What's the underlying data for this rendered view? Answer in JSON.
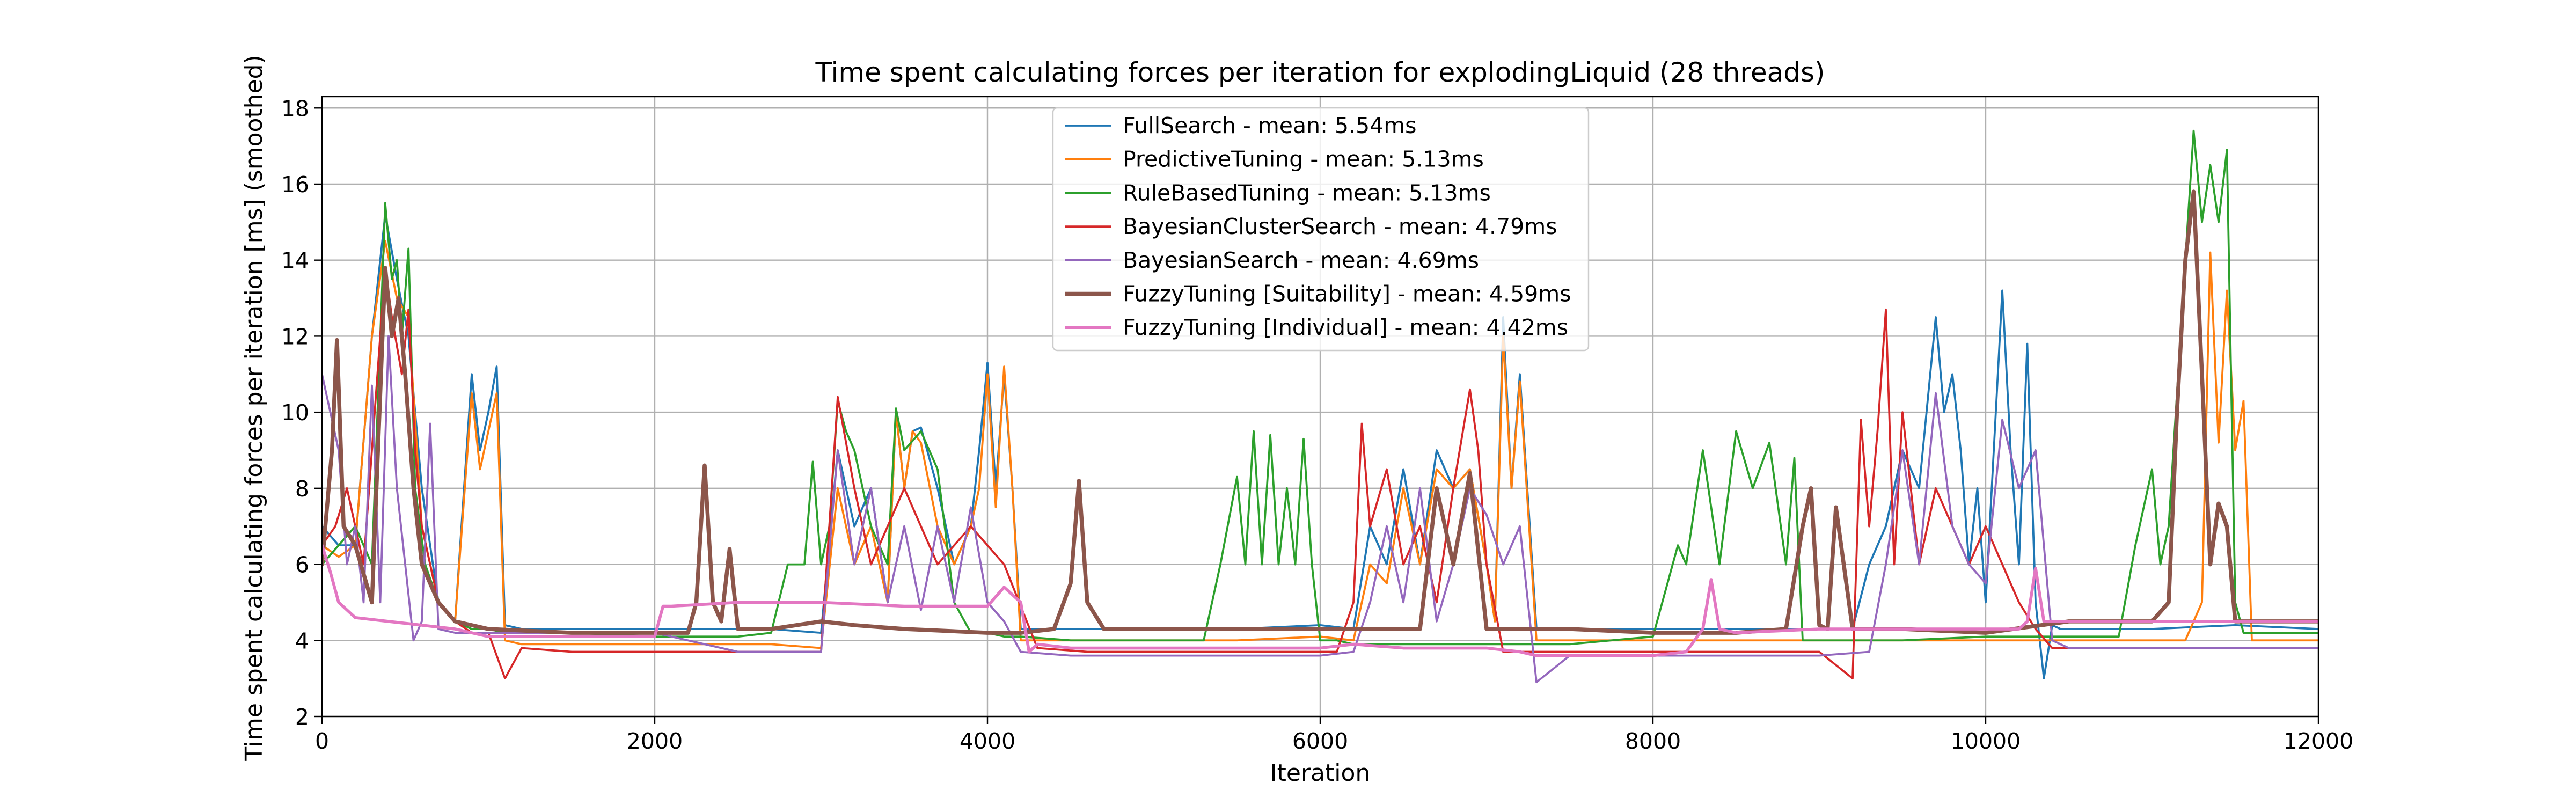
{
  "chart_data": {
    "type": "line",
    "title": "Time spent calculating forces per iteration for explodingLiquid (28 threads)",
    "xlabel": "Iteration",
    "ylabel": "Time spent calculating forces per iteration [ms] (smoothed)",
    "xlim": [
      0,
      12000
    ],
    "ylim": [
      2,
      18.3
    ],
    "xticks": [
      0,
      2000,
      4000,
      6000,
      8000,
      10000,
      12000
    ],
    "yticks": [
      2,
      4,
      6,
      8,
      10,
      12,
      14,
      16,
      18
    ],
    "grid": true,
    "legend_position": "upper-center",
    "series": [
      {
        "name": "FullSearch - mean: 5.54ms",
        "color": "#1f77b4",
        "line_width": 1,
        "x": [
          0,
          100,
          200,
          300,
          380,
          450,
          520,
          600,
          700,
          800,
          900,
          950,
          1000,
          1050,
          1100,
          1200,
          1500,
          1800,
          2100,
          2400,
          2700,
          3000,
          3100,
          3200,
          3300,
          3400,
          3450,
          3500,
          3550,
          3600,
          3700,
          3800,
          3900,
          3950,
          4000,
          4050,
          4100,
          4150,
          4200,
          4500,
          5000,
          5500,
          6000,
          6200,
          6300,
          6400,
          6500,
          6600,
          6700,
          6800,
          6900,
          7000,
          7050,
          7100,
          7150,
          7200,
          7300,
          7500,
          8000,
          8500,
          9000,
          9200,
          9300,
          9400,
          9500,
          9600,
          9700,
          9750,
          9800,
          9850,
          9900,
          9950,
          10000,
          10100,
          10150,
          10200,
          10250,
          10300,
          10350,
          10400,
          10450,
          10500,
          11000,
          11500,
          12000
        ],
        "y": [
          7,
          6.5,
          6.5,
          12,
          15.2,
          13.5,
          12,
          8,
          5,
          4.5,
          11,
          9,
          10,
          11.2,
          4.4,
          4.3,
          4.3,
          4.3,
          4.3,
          4.3,
          4.3,
          4.2,
          9,
          7,
          8,
          5,
          10,
          8,
          9.5,
          9.6,
          8,
          6,
          7,
          9,
          11.3,
          8,
          11,
          8,
          4.3,
          4.3,
          4.3,
          4.3,
          4.4,
          4.3,
          7,
          6,
          8.5,
          6,
          9,
          8,
          8.5,
          6,
          4.5,
          12.5,
          8,
          11,
          4.3,
          4.3,
          4.3,
          4.3,
          4.3,
          4.3,
          6,
          7,
          9,
          8,
          12.5,
          10,
          11,
          9,
          6,
          8,
          5,
          13.2,
          9,
          6,
          11.8,
          5,
          3,
          4.4,
          4.3,
          4.3,
          4.3,
          4.4,
          4.3
        ]
      },
      {
        "name": "PredictiveTuning - mean: 5.13ms",
        "color": "#ff7f0e",
        "line_width": 1,
        "x": [
          0,
          100,
          200,
          300,
          380,
          450,
          520,
          600,
          700,
          800,
          900,
          950,
          1000,
          1050,
          1100,
          1200,
          1500,
          1800,
          2100,
          2400,
          2700,
          3000,
          3100,
          3200,
          3300,
          3400,
          3450,
          3500,
          3550,
          3600,
          3700,
          3800,
          3900,
          3950,
          4000,
          4050,
          4100,
          4150,
          4200,
          4500,
          5000,
          5500,
          6000,
          6200,
          6300,
          6400,
          6500,
          6600,
          6700,
          6800,
          6900,
          7000,
          7050,
          7100,
          7150,
          7200,
          7300,
          7500,
          8000,
          8500,
          9000,
          9500,
          10000,
          10500,
          11000,
          11200,
          11300,
          11350,
          11400,
          11450,
          11500,
          11550,
          11600,
          11700,
          12000
        ],
        "y": [
          6.5,
          6.2,
          6.5,
          12,
          14.5,
          13,
          12.5,
          7,
          5,
          4.5,
          10.5,
          8.5,
          9.5,
          10.5,
          4,
          3.9,
          3.9,
          3.9,
          3.9,
          3.9,
          3.9,
          3.8,
          8,
          6,
          7,
          5,
          10,
          8,
          9.5,
          9.2,
          7,
          6,
          7,
          8,
          11,
          7.5,
          11.2,
          8,
          4,
          4,
          4,
          4,
          4.1,
          4,
          6,
          5.5,
          8,
          6,
          8.5,
          8,
          8.5,
          6,
          4.5,
          12,
          8,
          10.8,
          4,
          4,
          4,
          4,
          4,
          4,
          4,
          4,
          4,
          4,
          5,
          14.2,
          9.2,
          13.2,
          9,
          10.3,
          4,
          4,
          4
        ]
      },
      {
        "name": "RuleBasedTuning - mean: 5.13ms",
        "color": "#2ca02c",
        "line_width": 1,
        "x": [
          0,
          100,
          200,
          300,
          380,
          420,
          450,
          480,
          520,
          560,
          620,
          700,
          800,
          900,
          1000,
          1100,
          1500,
          2000,
          2500,
          2700,
          2800,
          2900,
          2950,
          3000,
          3050,
          3100,
          3150,
          3200,
          3300,
          3400,
          3450,
          3500,
          3600,
          3700,
          3800,
          3900,
          4000,
          4100,
          4200,
          4500,
          5000,
          5300,
          5400,
          5500,
          5550,
          5600,
          5650,
          5700,
          5750,
          5800,
          5850,
          5900,
          5950,
          6000,
          6100,
          6200,
          6500,
          7000,
          7500,
          8000,
          8150,
          8200,
          8300,
          8400,
          8500,
          8600,
          8700,
          8800,
          8850,
          8900,
          9000,
          9500,
          10000,
          10500,
          10800,
          10900,
          11000,
          11050,
          11100,
          11200,
          11250,
          11300,
          11350,
          11400,
          11450,
          11500,
          11550,
          11600,
          11700,
          12000
        ],
        "y": [
          6,
          6.5,
          7,
          6,
          15.5,
          13.5,
          14,
          12,
          14.3,
          8,
          6,
          5,
          4.5,
          4.3,
          4.3,
          4.2,
          4.2,
          4.1,
          4.1,
          4.2,
          6,
          6,
          8.7,
          6,
          7,
          10.3,
          9.5,
          9,
          7,
          6,
          10.1,
          9,
          9.5,
          8.5,
          5,
          4.2,
          4.2,
          4.1,
          4.1,
          4,
          4,
          4,
          6,
          8.3,
          6,
          9.5,
          6,
          9.4,
          6,
          8,
          6,
          9.3,
          6,
          4,
          4,
          3.9,
          3.9,
          3.9,
          3.9,
          4.1,
          6.5,
          6,
          9,
          6,
          9.5,
          8,
          9.2,
          6,
          8.8,
          4,
          4,
          4,
          4.1,
          4.1,
          4.1,
          6.5,
          8.5,
          6,
          7,
          14,
          17.4,
          15,
          16.5,
          15,
          16.9,
          5,
          4.2,
          4.2,
          4.2,
          4.2
        ]
      },
      {
        "name": "BayesianClusterSearch - mean: 4.79ms",
        "color": "#d62728",
        "line_width": 1,
        "x": [
          0,
          80,
          150,
          250,
          380,
          420,
          480,
          520,
          560,
          600,
          700,
          800,
          900,
          1000,
          1100,
          1200,
          1500,
          2000,
          2500,
          3000,
          3100,
          3200,
          3300,
          3500,
          3700,
          3900,
          4100,
          4300,
          4600,
          5000,
          5500,
          6000,
          6100,
          6200,
          6250,
          6300,
          6400,
          6500,
          6600,
          6700,
          6800,
          6900,
          6950,
          7000,
          7100,
          7200,
          7300,
          7500,
          8000,
          8500,
          9000,
          9200,
          9250,
          9300,
          9350,
          9400,
          9450,
          9500,
          9600,
          9700,
          9800,
          9900,
          10000,
          10100,
          10200,
          10300,
          10400,
          10500,
          11000,
          11500,
          12000
        ],
        "y": [
          6.5,
          7,
          8,
          6,
          13.8,
          12.5,
          11,
          12.7,
          9,
          7,
          5,
          4.5,
          4.2,
          4.2,
          3,
          3.8,
          3.7,
          3.7,
          3.7,
          3.7,
          10.4,
          8,
          6,
          8,
          6,
          7,
          6,
          3.8,
          3.7,
          3.7,
          3.7,
          3.7,
          3.7,
          5,
          9.7,
          7,
          8.5,
          6,
          7,
          5,
          8,
          10.6,
          9,
          6,
          3.7,
          3.7,
          3.7,
          3.7,
          3.7,
          3.7,
          3.7,
          3,
          9.8,
          7,
          9.5,
          12.7,
          6,
          10,
          6,
          8,
          7,
          6,
          7,
          6,
          5,
          4.3,
          3.8,
          3.8,
          3.8,
          3.8,
          3.8
        ]
      },
      {
        "name": "BayesianSearch - mean: 4.69ms",
        "color": "#9467bd",
        "line_width": 1,
        "x": [
          0,
          100,
          150,
          200,
          250,
          300,
          350,
          400,
          450,
          500,
          550,
          600,
          650,
          700,
          800,
          1000,
          1500,
          2000,
          2500,
          3000,
          3100,
          3200,
          3300,
          3400,
          3500,
          3600,
          3700,
          3800,
          3900,
          4000,
          4100,
          4200,
          4500,
          5000,
          5500,
          6000,
          6200,
          6300,
          6400,
          6500,
          6600,
          6700,
          6800,
          6900,
          7000,
          7100,
          7200,
          7300,
          7500,
          8000,
          8500,
          9000,
          9300,
          9400,
          9500,
          9600,
          9700,
          9800,
          9900,
          10000,
          10100,
          10200,
          10300,
          10400,
          10500,
          11000,
          11500,
          12000
        ],
        "y": [
          11,
          9,
          6,
          7,
          5,
          10.7,
          5,
          12,
          8,
          6,
          4,
          4.5,
          9.7,
          4.3,
          4.2,
          4.2,
          4.2,
          4.2,
          3.7,
          3.7,
          9,
          6,
          8,
          5,
          7,
          4.8,
          7,
          5,
          7.5,
          5,
          4.5,
          3.7,
          3.6,
          3.6,
          3.6,
          3.6,
          3.7,
          5,
          7,
          5,
          8,
          4.5,
          6,
          8,
          7.3,
          6,
          7,
          2.9,
          3.6,
          3.6,
          3.6,
          3.6,
          3.7,
          6,
          9,
          6,
          10.5,
          7,
          6,
          5.5,
          9.8,
          8,
          9,
          4,
          3.8,
          3.8,
          3.8,
          3.8
        ]
      },
      {
        "name": "FuzzyTuning [Suitability] - mean: 4.59ms",
        "color": "#8c564b",
        "line_width": 2,
        "x": [
          0,
          60,
          90,
          130,
          200,
          300,
          380,
          420,
          460,
          500,
          550,
          600,
          700,
          800,
          1000,
          1500,
          2000,
          2200,
          2250,
          2300,
          2350,
          2400,
          2450,
          2500,
          2700,
          3000,
          3200,
          3500,
          4000,
          4200,
          4400,
          4500,
          4550,
          4600,
          4700,
          5000,
          5500,
          6000,
          6200,
          6500,
          6600,
          6700,
          6800,
          6900,
          7000,
          7100,
          7200,
          7500,
          8000,
          8500,
          8800,
          8900,
          8950,
          9000,
          9050,
          9100,
          9200,
          9500,
          10000,
          10500,
          11000,
          11100,
          11150,
          11200,
          11250,
          11300,
          11350,
          11400,
          11450,
          11500,
          11600,
          12000
        ],
        "y": [
          6,
          9,
          11.9,
          7,
          6.5,
          5,
          13.8,
          12,
          13,
          11,
          8,
          6,
          5,
          4.5,
          4.3,
          4.2,
          4.2,
          4.2,
          5,
          8.6,
          5,
          4.5,
          6.4,
          4.3,
          4.3,
          4.5,
          4.4,
          4.3,
          4.2,
          4.2,
          4.3,
          5.5,
          8.2,
          5,
          4.3,
          4.3,
          4.3,
          4.3,
          4.3,
          4.3,
          4.3,
          8,
          6,
          8.4,
          4.3,
          4.3,
          4.3,
          4.3,
          4.2,
          4.2,
          4.3,
          7,
          8,
          4.4,
          4.3,
          7.5,
          4.3,
          4.3,
          4.2,
          4.5,
          4.5,
          5,
          10,
          14,
          15.8,
          11,
          6,
          7.6,
          7,
          4.5,
          4.5,
          4.5
        ]
      },
      {
        "name": "FuzzyTuning [Individual] - mean: 4.42ms",
        "color": "#e377c2",
        "line_width": 1.5,
        "x": [
          0,
          50,
          100,
          200,
          400,
          600,
          800,
          1000,
          1500,
          2000,
          2050,
          2100,
          2500,
          3000,
          3500,
          4000,
          4100,
          4200,
          4250,
          4300,
          4500,
          5000,
          5500,
          6000,
          6200,
          6500,
          7000,
          7200,
          7300,
          7500,
          8000,
          8200,
          8300,
          8350,
          8400,
          8500,
          9000,
          9500,
          10000,
          10200,
          10250,
          10300,
          10350,
          10400,
          10500,
          11000,
          11500,
          12000
        ],
        "y": [
          6.5,
          5.8,
          5,
          4.6,
          4.5,
          4.4,
          4.3,
          4.1,
          4.1,
          4.1,
          4.9,
          4.9,
          5,
          5,
          4.9,
          4.9,
          5.4,
          5,
          3.7,
          3.9,
          3.8,
          3.8,
          3.8,
          3.8,
          3.9,
          3.8,
          3.8,
          3.7,
          3.6,
          3.6,
          3.6,
          3.7,
          4.3,
          5.6,
          4.3,
          4.2,
          4.3,
          4.3,
          4.3,
          4.3,
          4.5,
          5.9,
          4.5,
          4.5,
          4.5,
          4.5,
          4.5,
          4.5
        ]
      }
    ]
  }
}
